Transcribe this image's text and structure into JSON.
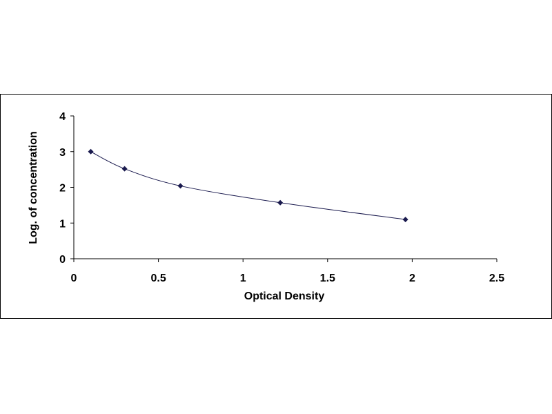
{
  "chart_data": {
    "type": "scatter",
    "title": "",
    "xlabel": "Optical Density",
    "ylabel": "Log. of concentration",
    "xlim": [
      0,
      2.5
    ],
    "ylim": [
      0,
      4
    ],
    "x_ticks": [
      0,
      0.5,
      1,
      1.5,
      2,
      2.5
    ],
    "x_tick_labels": [
      "0",
      "0.5",
      "1",
      "1.5",
      "2",
      "2.5"
    ],
    "y_ticks": [
      0,
      1,
      2,
      3,
      4
    ],
    "y_tick_labels": [
      "0",
      "1",
      "2",
      "3",
      "4"
    ],
    "grid": false,
    "legend": "none",
    "marker": "diamond",
    "trendline": "smooth curve through points",
    "series": [
      {
        "x": [
          0.1,
          0.3,
          0.63,
          1.22,
          1.96
        ],
        "y": [
          3.0,
          2.52,
          2.04,
          1.57,
          1.1
        ]
      }
    ],
    "colors": {
      "marker": "#1a1a4e",
      "line": "#1a1a4e",
      "axis": "#000000"
    }
  }
}
